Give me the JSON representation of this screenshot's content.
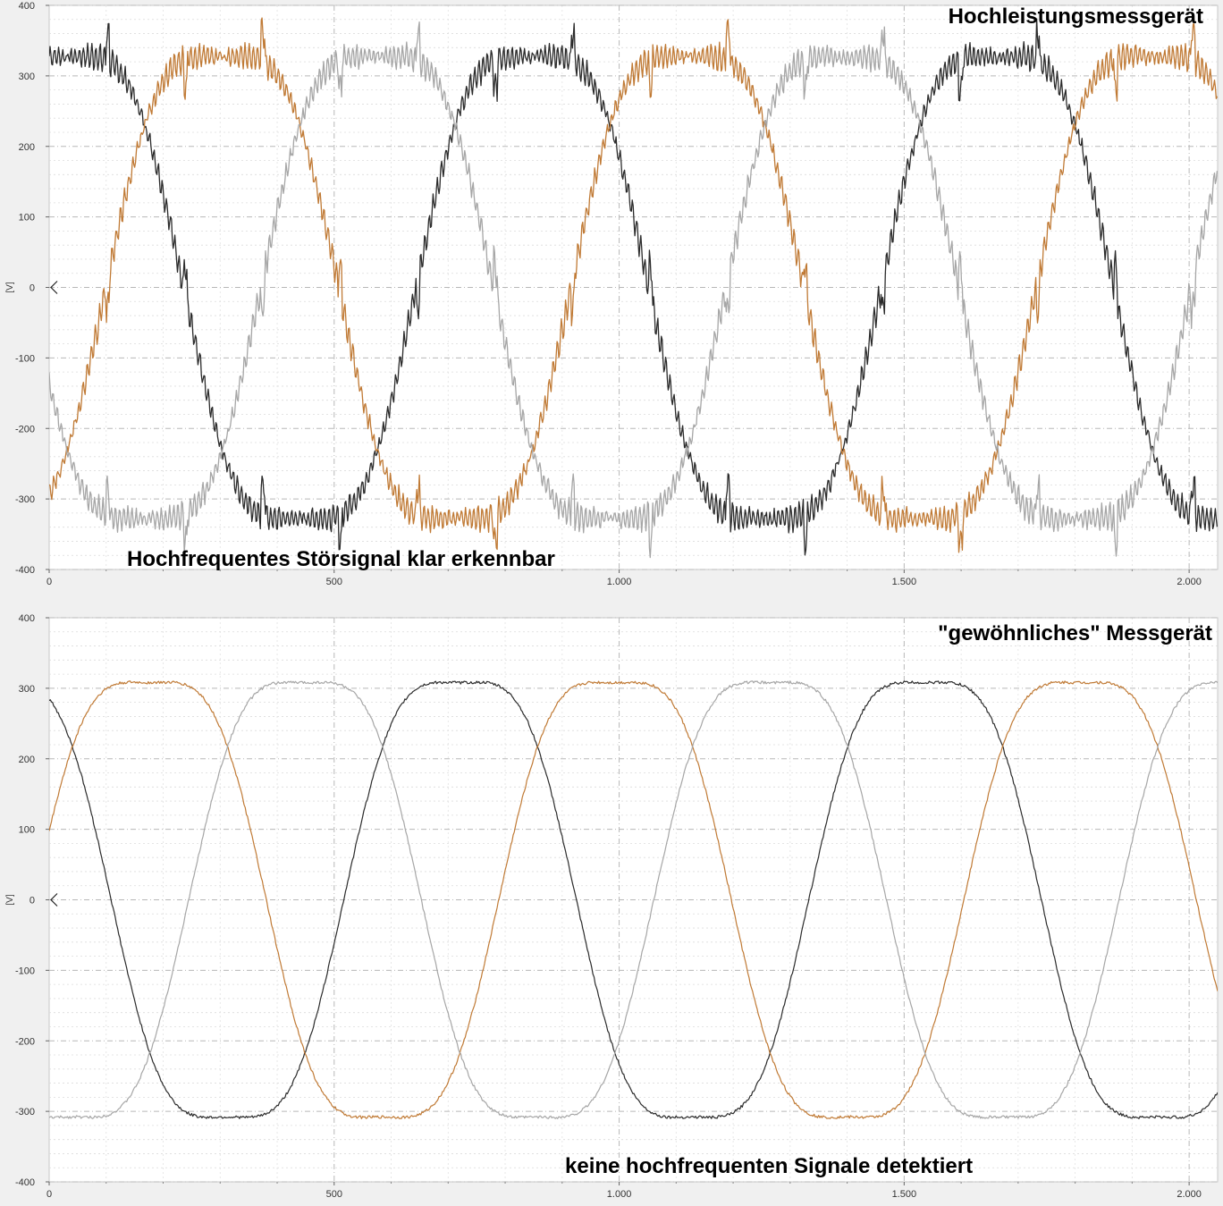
{
  "chart_data": [
    {
      "type": "line",
      "title": "",
      "xlabel": "",
      "ylabel": "[V]",
      "xlim": [
        0,
        2050
      ],
      "ylim": [
        -400,
        400
      ],
      "grid": true,
      "x_ticks": [
        "0",
        "500",
        "1.000",
        "1.500",
        "2.000"
      ],
      "x_tick_values": [
        0,
        500,
        1000,
        1500,
        2000
      ],
      "y_ticks": [
        "400",
        "300",
        "200",
        "100",
        "0",
        "-100",
        "-200",
        "-300",
        "-400"
      ],
      "y_tick_values": [
        400,
        300,
        200,
        100,
        0,
        -100,
        -200,
        -300,
        -400
      ],
      "annotations": [
        "Hochleistungsmessgerät",
        "Hochfrequentes Störsignal klar erkennbar"
      ],
      "series": [
        {
          "color": "#2b2b2b",
          "amplitude": 372,
          "period_samples": 816,
          "phase_deg": 76,
          "noise": "high-frequency ripple"
        },
        {
          "color": "#c07a35",
          "amplitude": 372,
          "period_samples": 816,
          "phase_deg": -44,
          "noise": "high-frequency ripple"
        },
        {
          "color": "#a6a6a6",
          "amplitude": 372,
          "period_samples": 816,
          "phase_deg": 196,
          "noise": "high-frequency ripple"
        }
      ]
    },
    {
      "type": "line",
      "title": "",
      "xlabel": "",
      "ylabel": "[V]",
      "xlim": [
        0,
        2050
      ],
      "ylim": [
        -400,
        400
      ],
      "grid": true,
      "x_ticks": [
        "0",
        "500",
        "1.000",
        "1.500",
        "2.000"
      ],
      "x_tick_values": [
        0,
        500,
        1000,
        1500,
        2000
      ],
      "y_ticks": [
        "400",
        "300",
        "200",
        "100",
        "0",
        "-100",
        "-200",
        "-300",
        "-400"
      ],
      "y_tick_values": [
        400,
        300,
        200,
        100,
        0,
        -100,
        -200,
        -300,
        -400
      ],
      "annotations": [
        "\"gewöhnliches\" Messgerät",
        "keine hochfrequenten Signale detektiert"
      ],
      "series": [
        {
          "color": "#2b2b2b",
          "amplitude": 350,
          "period_samples": 816,
          "phase_deg": 132,
          "noise": "low"
        },
        {
          "color": "#c07a35",
          "amplitude": 350,
          "period_samples": 816,
          "phase_deg": 12,
          "noise": "low"
        },
        {
          "color": "#a6a6a6",
          "amplitude": 350,
          "period_samples": 816,
          "phase_deg": 252,
          "noise": "low"
        }
      ]
    }
  ]
}
